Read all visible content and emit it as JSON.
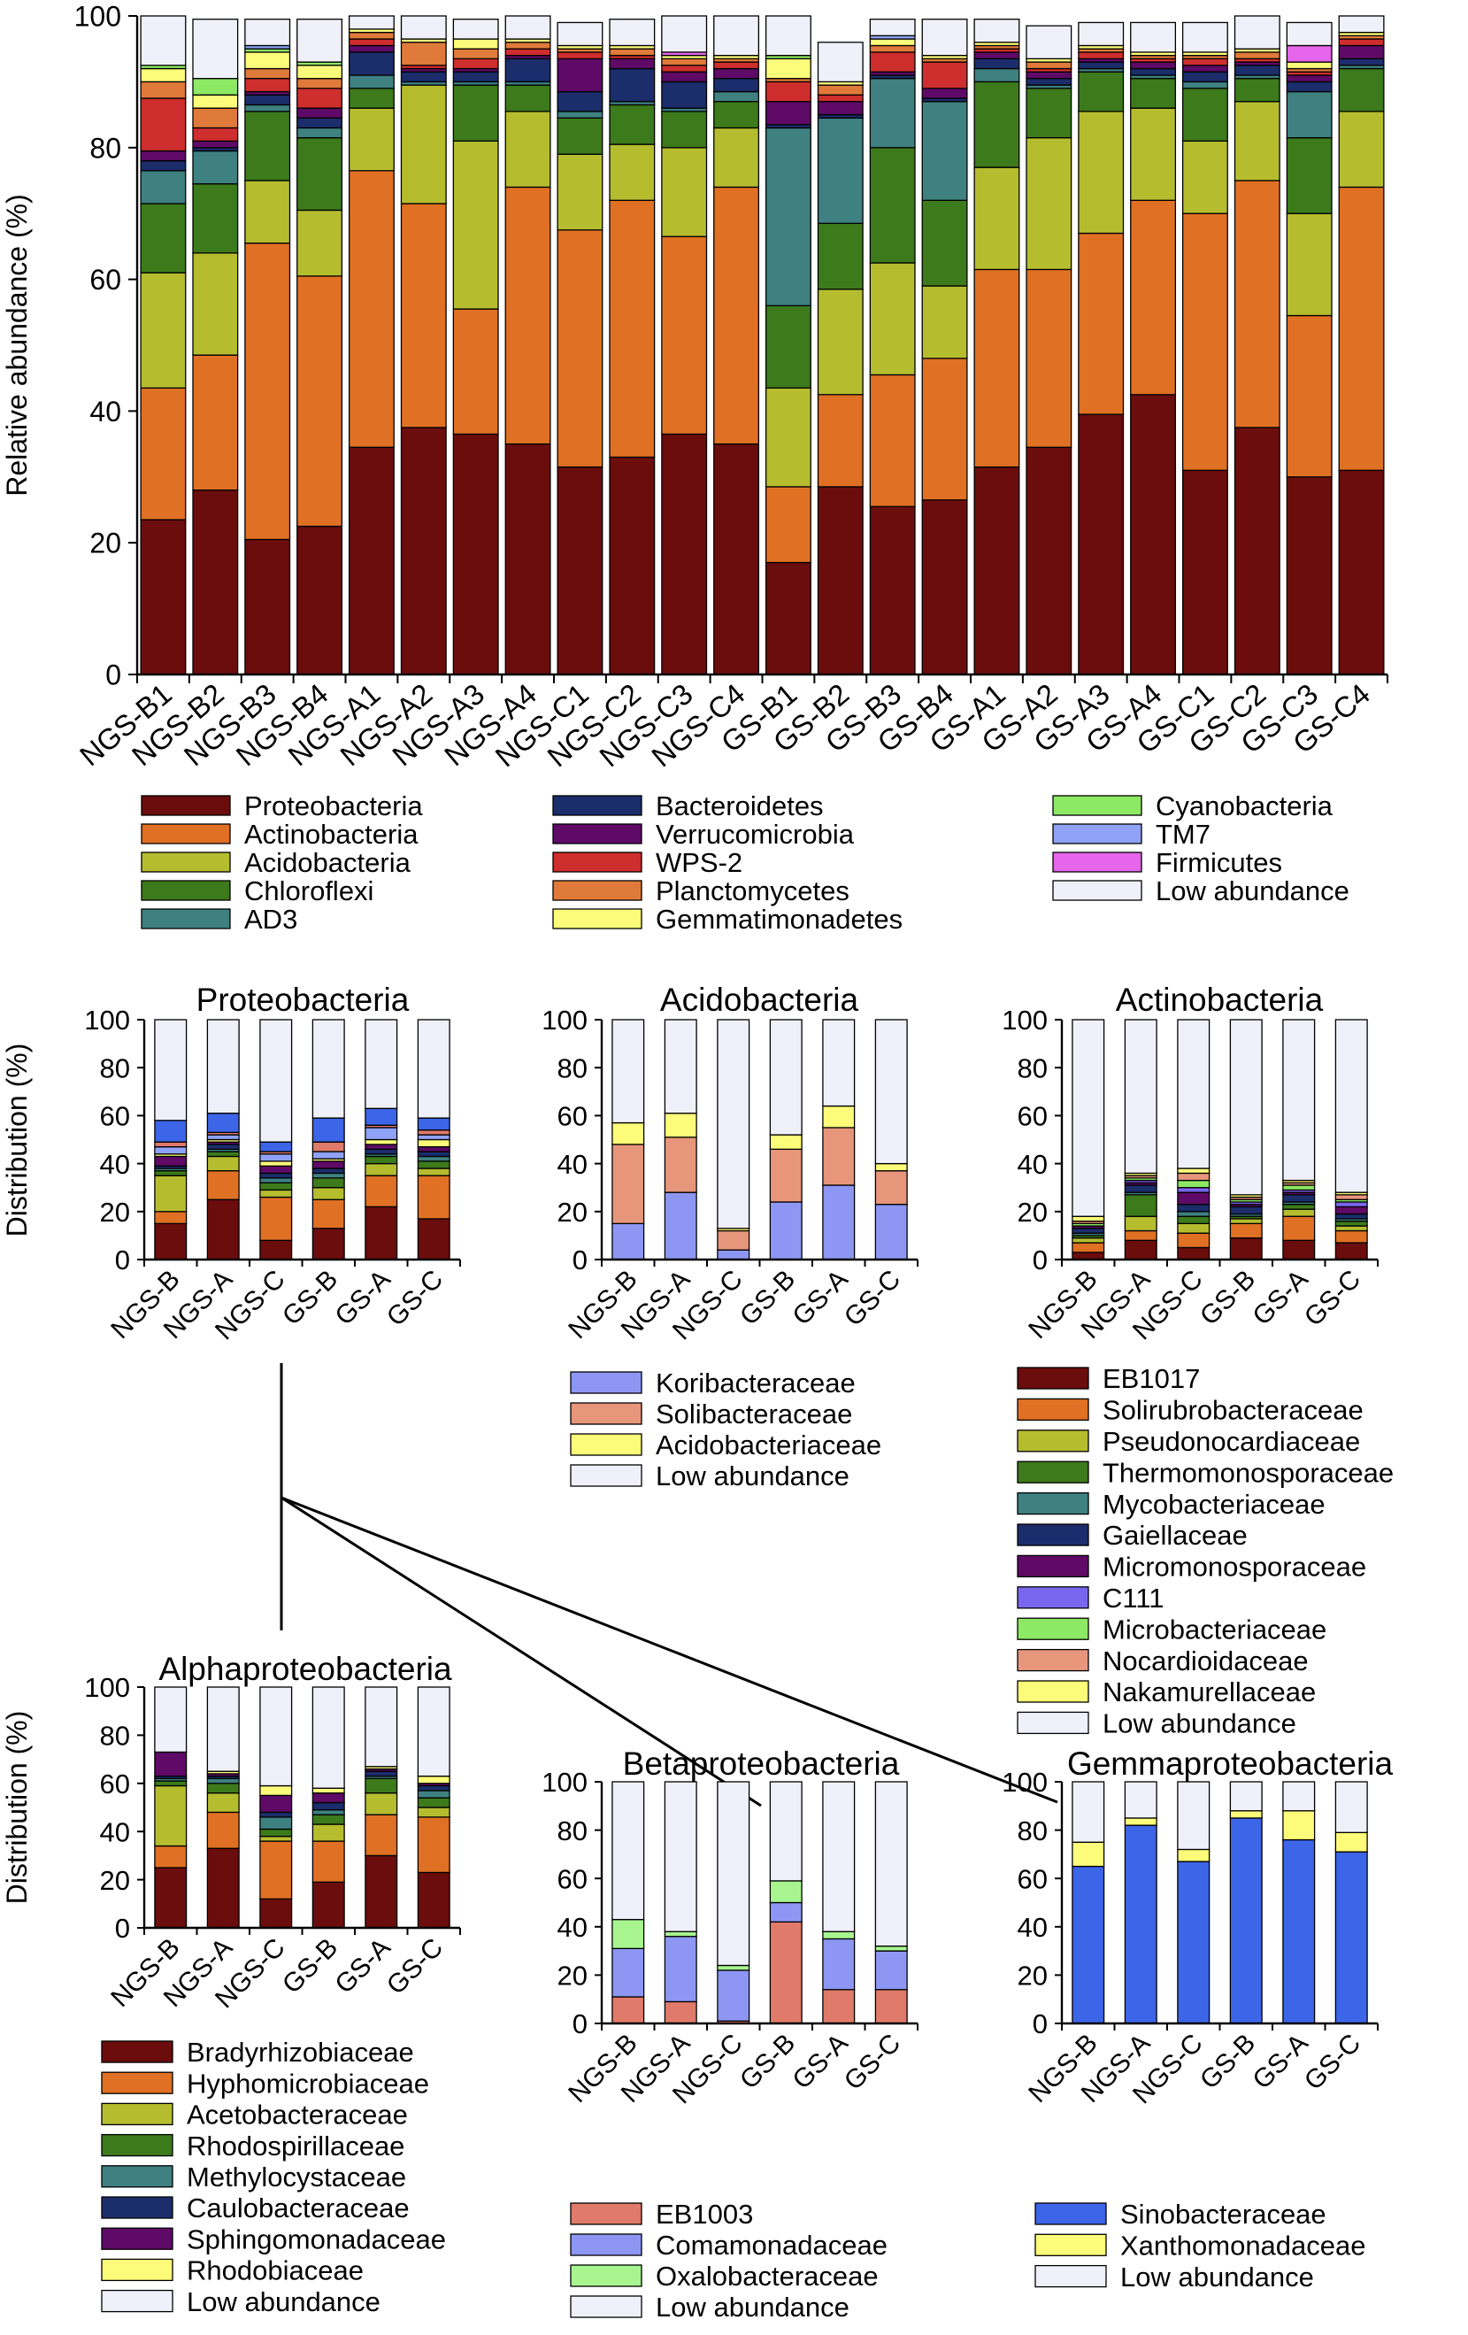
{
  "chart_data": [
    {
      "type": "bar",
      "stacked": true,
      "title": "",
      "xlabel": "",
      "ylabel": "Relative abundance (%)",
      "ylim": [
        0,
        100
      ],
      "yticks": [
        "0",
        "20",
        "40",
        "60",
        "80",
        "100"
      ],
      "categories": [
        "NGS-B1",
        "NGS-B2",
        "NGS-B3",
        "NGS-B4",
        "NGS-A1",
        "NGS-A2",
        "NGS-A3",
        "NGS-A4",
        "NGS-C1",
        "NGS-C2",
        "NGS-C3",
        "NGS-C4",
        "GS-B1",
        "GS-B2",
        "GS-B3",
        "GS-B4",
        "GS-A1",
        "GS-A2",
        "GS-A3",
        "GS-A4",
        "GS-C1",
        "GS-C2",
        "GS-C3",
        "GS-C4"
      ],
      "series": [
        {
          "name": "Proteobacteria",
          "color": "#6b0d0d",
          "values": [
            23.5,
            28,
            20.5,
            22.5,
            34.5,
            37.5,
            36.5,
            35,
            31.5,
            33,
            36.5,
            35,
            17,
            28.5,
            25.5,
            26.5,
            31.5,
            34.5,
            39.5,
            42.5,
            31,
            37.5,
            30,
            31
          ]
        },
        {
          "name": "Actinobacteria",
          "color": "#e07023",
          "values": [
            20,
            20.5,
            45,
            38,
            42,
            34,
            19,
            39,
            36,
            39,
            30,
            39,
            11.5,
            14,
            20,
            21.5,
            30,
            27,
            27.5,
            29.5,
            39,
            37.5,
            24.5,
            43
          ]
        },
        {
          "name": "Acidobacteria",
          "color": "#b5bd2f",
          "values": [
            17.5,
            15.5,
            9.5,
            10,
            9.5,
            18,
            25.5,
            11.5,
            11.5,
            8.5,
            13.5,
            9,
            15,
            16,
            17,
            11,
            15.5,
            20,
            18.5,
            14,
            11,
            12,
            15.5,
            11.5
          ]
        },
        {
          "name": "Chloroflexi",
          "color": "#3c7a1b",
          "values": [
            10.5,
            10.5,
            10.5,
            11,
            3,
            0,
            8.5,
            4,
            5.5,
            6,
            5.5,
            4,
            12.5,
            10,
            17.5,
            13,
            13,
            7.5,
            6,
            4.5,
            8,
            3.5,
            11.5,
            6.5
          ]
        },
        {
          "name": "AD3",
          "color": "#3f8080",
          "values": [
            5,
            5,
            1,
            1.5,
            2,
            0.5,
            0.5,
            0.5,
            1,
            0.5,
            0.5,
            1.5,
            27,
            16,
            10.5,
            15,
            2,
            0.5,
            0.5,
            0.5,
            1,
            0.5,
            7,
            0.5
          ]
        },
        {
          "name": "Bacteroidetes",
          "color": "#1c2d6b",
          "values": [
            1.5,
            0.5,
            1.5,
            1.5,
            3.5,
            1.5,
            1.5,
            3.5,
            3,
            5,
            4,
            2,
            0.5,
            0.5,
            0.5,
            0.5,
            1.5,
            1,
            1,
            1,
            1.5,
            1.5,
            1.5,
            1
          ]
        },
        {
          "name": "Verrucomicrobia",
          "color": "#5f0a66",
          "values": [
            1.5,
            1,
            0.5,
            1.5,
            1,
            0.5,
            0.5,
            0.5,
            5,
            1.5,
            1.5,
            1.5,
            3.5,
            2,
            0.5,
            1.5,
            1,
            1,
            0.5,
            1,
            1,
            0.5,
            1,
            2
          ]
        },
        {
          "name": "WPS-2",
          "color": "#cf2e2e",
          "values": [
            8,
            2,
            2,
            3,
            1,
            0.5,
            1.5,
            1,
            1,
            0.5,
            1,
            1,
            3,
            1,
            3,
            4,
            0.5,
            0.5,
            1,
            0.5,
            1,
            0.5,
            0.5,
            1
          ]
        },
        {
          "name": "Planctomycetes",
          "color": "#e07a3a",
          "values": [
            2.5,
            3,
            1.5,
            1.5,
            1,
            3.5,
            1.5,
            1,
            0.5,
            1,
            1,
            0.5,
            0.5,
            1.5,
            1,
            0.5,
            0.5,
            1,
            0.5,
            0.5,
            0.5,
            1,
            0.5,
            0.5
          ]
        },
        {
          "name": "Gemmatimonadetes",
          "color": "#fdfc7a",
          "values": [
            2,
            2,
            2.5,
            2,
            0.5,
            0.5,
            1.5,
            0.5,
            0.5,
            0.5,
            0.5,
            0.5,
            3,
            0.5,
            1,
            0.5,
            0.5,
            0.5,
            0.5,
            0.5,
            0.5,
            0.5,
            1,
            0.5
          ]
        },
        {
          "name": "Cyanobacteria",
          "color": "#8de864",
          "values": [
            0.5,
            2.5,
            0.5,
            0.5,
            0,
            0,
            0,
            0,
            0,
            0,
            0,
            0,
            0.5,
            0,
            0,
            0,
            0,
            0,
            0,
            0,
            0,
            0,
            0,
            0
          ]
        },
        {
          "name": "TM7",
          "color": "#8fa2f5",
          "values": [
            0,
            0,
            0.5,
            0,
            0,
            0,
            0,
            0,
            0,
            0,
            0,
            0,
            0,
            0,
            0.5,
            0,
            0,
            0,
            0,
            0,
            0,
            0,
            0,
            0
          ]
        },
        {
          "name": "Firmicutes",
          "color": "#e566ea",
          "values": [
            0,
            0,
            0,
            0,
            0,
            0,
            0,
            0,
            0,
            0,
            0.5,
            0,
            0,
            0,
            0,
            0,
            0,
            0,
            0,
            0,
            0,
            0,
            2.5,
            0
          ]
        },
        {
          "name": "Low abundance",
          "color": "#f0f0fa",
          "values": [
            7.5,
            9,
            4,
            6.5,
            2,
            3.5,
            3,
            3.5,
            3.5,
            4,
            5.5,
            6,
            6,
            6,
            2.5,
            5.5,
            3.5,
            5,
            3.5,
            4.5,
            4.5,
            5,
            3.5,
            2.5
          ]
        }
      ]
    },
    {
      "type": "bar",
      "stacked": true,
      "title": "Proteobacteria",
      "xlabel": "",
      "ylabel": "Distribution (%)",
      "ylim": [
        0,
        100
      ],
      "yticks": [
        "0",
        "20",
        "40",
        "60",
        "80",
        "100"
      ],
      "categories": [
        "NGS-B",
        "NGS-A",
        "NGS-C",
        "GS-B",
        "GS-A",
        "GS-C"
      ],
      "series": [
        {
          "name": "Bradyrhizobiaceae",
          "color": "#6b0d0d",
          "values": [
            15,
            25,
            8,
            13,
            22,
            17
          ]
        },
        {
          "name": "Hyphomicrobiaceae",
          "color": "#e07023",
          "values": [
            5,
            12,
            18,
            12,
            13,
            18
          ]
        },
        {
          "name": "Acetobacteraceae",
          "color": "#b5bd2f",
          "values": [
            15,
            6,
            3,
            5,
            5,
            3
          ]
        },
        {
          "name": "Rhodospirillaceae",
          "color": "#3c7a1b",
          "values": [
            2,
            2,
            3,
            4,
            3,
            3
          ]
        },
        {
          "name": "Methylocystaceae",
          "color": "#3f8080",
          "values": [
            1,
            1,
            2,
            2,
            1,
            2
          ]
        },
        {
          "name": "Caulobacteraceae",
          "color": "#1c2d6b",
          "values": [
            1,
            2,
            2,
            2,
            2,
            2
          ]
        },
        {
          "name": "Sphingomonadaceae",
          "color": "#5f0a66",
          "values": [
            4,
            1,
            3,
            3,
            2,
            2
          ]
        },
        {
          "name": "Rhodobiaceae",
          "color": "#fdfc7a",
          "values": [
            1,
            1,
            2,
            1,
            2,
            3
          ]
        },
        {
          "name": "Comamonadaceae",
          "color": "#8fa2f5",
          "values": [
            3,
            2,
            3,
            3,
            5,
            2
          ]
        },
        {
          "name": "EB1003",
          "color": "#e07a6a",
          "values": [
            2,
            1,
            1,
            4,
            1,
            2
          ]
        },
        {
          "name": "Sinobacteraceae",
          "color": "#3d65e8",
          "values": [
            9,
            8,
            4,
            10,
            7,
            5
          ]
        },
        {
          "name": "Low abundance",
          "color": "#f0f0fa",
          "values": [
            42,
            39,
            51,
            41,
            37,
            41
          ]
        }
      ]
    },
    {
      "type": "bar",
      "stacked": true,
      "title": "Acidobacteria",
      "xlabel": "",
      "ylabel": "",
      "ylim": [
        0,
        100
      ],
      "yticks": [
        "0",
        "20",
        "40",
        "60",
        "80",
        "100"
      ],
      "categories": [
        "NGS-B",
        "NGS-A",
        "NGS-C",
        "GS-B",
        "GS-A",
        "GS-C"
      ],
      "series": [
        {
          "name": "Koribacteraceae",
          "color": "#8d97f3",
          "values": [
            15,
            28,
            4,
            24,
            31,
            23
          ]
        },
        {
          "name": "Solibacteraceae",
          "color": "#e7967c",
          "values": [
            33,
            23,
            8,
            22,
            24,
            14
          ]
        },
        {
          "name": "Acidobacteriaceae",
          "color": "#fdfc7a",
          "values": [
            9,
            10,
            1,
            6,
            9,
            3
          ]
        },
        {
          "name": "Low abundance",
          "color": "#f0f0fa",
          "values": [
            43,
            39,
            87,
            48,
            36,
            60
          ]
        }
      ]
    },
    {
      "type": "bar",
      "stacked": true,
      "title": "Actinobacteria",
      "xlabel": "",
      "ylabel": "",
      "ylim": [
        0,
        100
      ],
      "yticks": [
        "0",
        "20",
        "40",
        "60",
        "80",
        "100"
      ],
      "categories": [
        "NGS-B",
        "NGS-A",
        "NGS-C",
        "GS-B",
        "GS-A",
        "GS-C"
      ],
      "series": [
        {
          "name": "EB1017",
          "color": "#6b0d0d",
          "values": [
            3,
            8,
            5,
            9,
            8,
            7
          ]
        },
        {
          "name": "Solirubrobacteraceae",
          "color": "#e07023",
          "values": [
            4,
            4,
            6,
            6,
            10,
            5
          ]
        },
        {
          "name": "Pseudonocardiaceae",
          "color": "#b5bd2f",
          "values": [
            2,
            6,
            4,
            2,
            3,
            2
          ]
        },
        {
          "name": "Thermomonosporaceae",
          "color": "#3c7a1b",
          "values": [
            1,
            9,
            3,
            1,
            2,
            2
          ]
        },
        {
          "name": "Mycobacteriaceae",
          "color": "#3f8080",
          "values": [
            1,
            1,
            2,
            1,
            1,
            1
          ]
        },
        {
          "name": "Gaiellaceae",
          "color": "#1c2d6b",
          "values": [
            2,
            3,
            3,
            3,
            3,
            2
          ]
        },
        {
          "name": "Micromonosporaceae",
          "color": "#5f0a66",
          "values": [
            1,
            1,
            5,
            1,
            1,
            3
          ]
        },
        {
          "name": "C111",
          "color": "#7a66ee",
          "values": [
            0,
            1,
            2,
            1,
            1,
            2
          ]
        },
        {
          "name": "Microbacteriaceae",
          "color": "#8de864",
          "values": [
            1,
            1,
            3,
            1,
            2,
            1
          ]
        },
        {
          "name": "Nocardioidaceae",
          "color": "#e7967c",
          "values": [
            1,
            1,
            3,
            1,
            1,
            2
          ]
        },
        {
          "name": "Nakamurellaceae",
          "color": "#fdfc7a",
          "values": [
            2,
            1,
            2,
            1,
            1,
            1
          ]
        },
        {
          "name": "Low abundance",
          "color": "#f0f0fa",
          "values": [
            82,
            64,
            62,
            73,
            67,
            72
          ]
        }
      ]
    },
    {
      "type": "bar",
      "stacked": true,
      "title": "Alphaproteobacteria",
      "xlabel": "",
      "ylabel": "Distribution (%)",
      "ylim": [
        0,
        100
      ],
      "yticks": [
        "0",
        "20",
        "40",
        "60",
        "80",
        "100"
      ],
      "categories": [
        "NGS-B",
        "NGS-A",
        "NGS-C",
        "GS-B",
        "GS-A",
        "GS-C"
      ],
      "series": [
        {
          "name": "Bradyrhizobiaceae",
          "color": "#6b0d0d",
          "values": [
            25,
            33,
            12,
            19,
            30,
            23
          ]
        },
        {
          "name": "Hyphomicrobiaceae",
          "color": "#e07023",
          "values": [
            9,
            15,
            24,
            17,
            17,
            23
          ]
        },
        {
          "name": "Acetobacteraceae",
          "color": "#b5bd2f",
          "values": [
            25,
            8,
            2,
            7,
            9,
            4
          ]
        },
        {
          "name": "Rhodospirillaceae",
          "color": "#3c7a1b",
          "values": [
            2,
            4,
            3,
            4,
            6,
            4
          ]
        },
        {
          "name": "Methylocystaceae",
          "color": "#3f8080",
          "values": [
            1,
            2,
            5,
            2,
            1,
            3
          ]
        },
        {
          "name": "Caulobacteraceae",
          "color": "#1c2d6b",
          "values": [
            1,
            1,
            2,
            3,
            2,
            2
          ]
        },
        {
          "name": "Sphingomonadaceae",
          "color": "#5f0a66",
          "values": [
            10,
            1,
            7,
            4,
            1,
            1
          ]
        },
        {
          "name": "Rhodobiaceae",
          "color": "#fdfc7a",
          "values": [
            0,
            1,
            4,
            2,
            1,
            3
          ]
        },
        {
          "name": "Low abundance",
          "color": "#f0f0fa",
          "values": [
            27,
            35,
            41,
            42,
            33,
            37
          ]
        }
      ]
    },
    {
      "type": "bar",
      "stacked": true,
      "title": "Betaproteobacteria",
      "xlabel": "",
      "ylabel": "",
      "ylim": [
        0,
        100
      ],
      "yticks": [
        "0",
        "20",
        "40",
        "60",
        "80",
        "100"
      ],
      "categories": [
        "NGS-B",
        "NGS-A",
        "NGS-C",
        "GS-B",
        "GS-A",
        "GS-C"
      ],
      "series": [
        {
          "name": "EB1003",
          "color": "#e07a6a",
          "values": [
            11,
            9,
            1,
            42,
            14,
            14
          ]
        },
        {
          "name": "Comamonadaceae",
          "color": "#8d97f3",
          "values": [
            20,
            27,
            21,
            8,
            21,
            16
          ]
        },
        {
          "name": "Oxalobacteraceae",
          "color": "#a8f590",
          "values": [
            12,
            2,
            2,
            9,
            3,
            2
          ]
        },
        {
          "name": "Low abundance",
          "color": "#f0f0fa",
          "values": [
            57,
            62,
            76,
            41,
            62,
            68
          ]
        }
      ]
    },
    {
      "type": "bar",
      "stacked": true,
      "title": "Gemmaproteobacteria",
      "xlabel": "",
      "ylabel": "",
      "ylim": [
        0,
        100
      ],
      "yticks": [
        "0",
        "20",
        "40",
        "60",
        "80",
        "100"
      ],
      "categories": [
        "NGS-B",
        "NGS-A",
        "NGS-C",
        "GS-B",
        "GS-A",
        "GS-C"
      ],
      "series": [
        {
          "name": "Sinobacteraceae",
          "color": "#3d65e8",
          "values": [
            65,
            82,
            67,
            85,
            76,
            71
          ]
        },
        {
          "name": "Xanthomonadaceae",
          "color": "#fdfc7a",
          "values": [
            10,
            3,
            5,
            3,
            12,
            8
          ]
        },
        {
          "name": "Low abundance",
          "color": "#f0f0fa",
          "values": [
            25,
            15,
            28,
            12,
            12,
            21
          ]
        }
      ]
    }
  ]
}
